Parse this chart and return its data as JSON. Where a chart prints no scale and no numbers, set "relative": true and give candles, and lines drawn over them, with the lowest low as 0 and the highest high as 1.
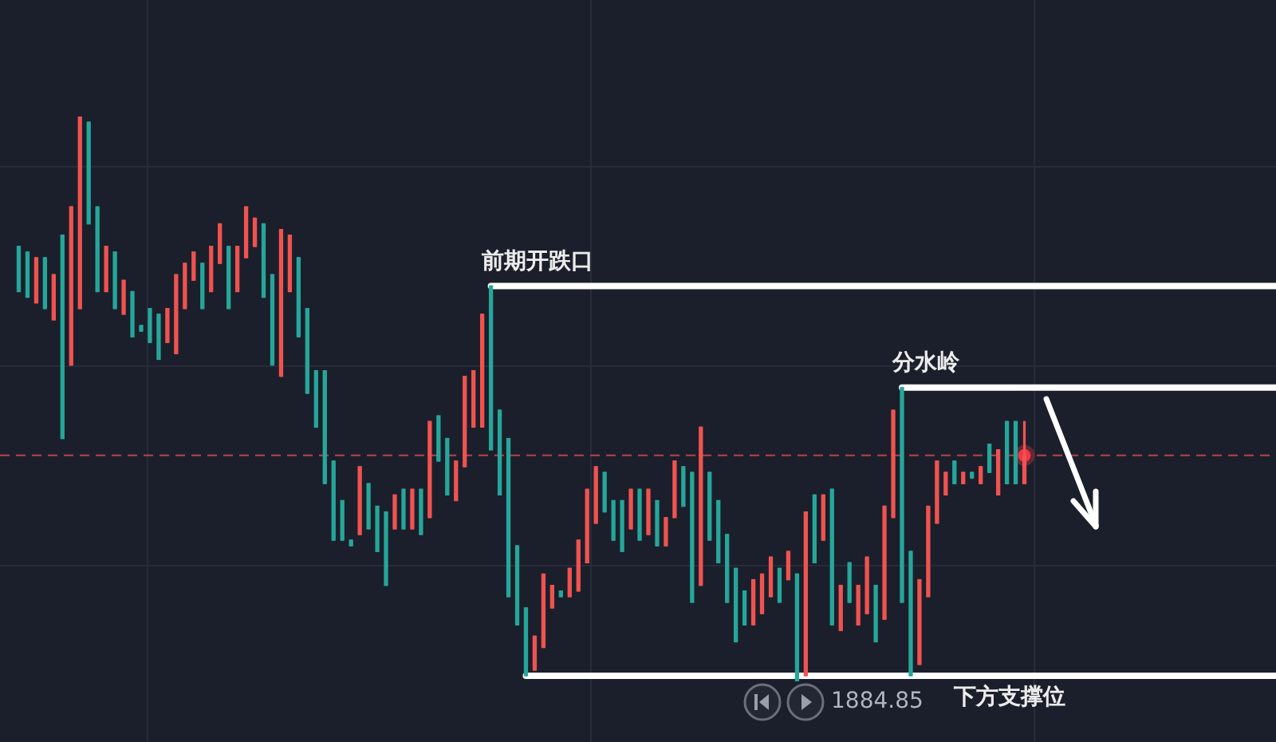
{
  "chart_data": {
    "type": "candlestick",
    "relative": true,
    "tick_labels": false,
    "grid": true,
    "categories": [
      null,
      null,
      null,
      null,
      null,
      null,
      null,
      null,
      null,
      null,
      null,
      null,
      null,
      null,
      null,
      null,
      null,
      null,
      null,
      null,
      null,
      null,
      null,
      null,
      null,
      null,
      null,
      null,
      null,
      null,
      null,
      null,
      null,
      null,
      null,
      null,
      null,
      null,
      null,
      null,
      null,
      null,
      null,
      null,
      null,
      null,
      null,
      null,
      null,
      null,
      null,
      null,
      null,
      null,
      null,
      null,
      null,
      null,
      null,
      null,
      null,
      null,
      null,
      null,
      null,
      null,
      null,
      null,
      null,
      null,
      null,
      null,
      null,
      null,
      null,
      null,
      null,
      null,
      null,
      null,
      null,
      null,
      null,
      null,
      null,
      null,
      null,
      null,
      null,
      null,
      null,
      null,
      null,
      null,
      null,
      null,
      null,
      null,
      null,
      null,
      null,
      null,
      null,
      null,
      null,
      null,
      null,
      null,
      null,
      null,
      null,
      null,
      null,
      null,
      null,
      null
    ],
    "ohlc": [
      [
        0.77,
        0.77,
        0.69,
        0.69
      ],
      [
        0.76,
        0.76,
        0.68,
        0.68
      ],
      [
        0.67,
        0.75,
        0.67,
        0.75
      ],
      [
        0.75,
        0.75,
        0.66,
        0.66
      ],
      [
        0.64,
        0.72,
        0.64,
        0.72
      ],
      [
        0.79,
        0.79,
        0.43,
        0.43
      ],
      [
        0.56,
        0.84,
        0.56,
        0.84
      ],
      [
        0.66,
        1,
        0.66,
        1
      ],
      [
        0.99,
        0.99,
        0.81,
        0.81
      ],
      [
        0.84,
        0.84,
        0.69,
        0.69
      ],
      [
        0.69,
        0.77,
        0.69,
        0.77
      ],
      [
        0.76,
        0.76,
        0.66,
        0.66
      ],
      [
        0.65,
        0.71,
        0.65,
        0.71
      ],
      [
        0.69,
        0.69,
        0.61,
        0.61
      ],
      [
        0.63,
        0.63,
        0.62,
        0.62
      ],
      [
        0.66,
        0.66,
        0.6,
        0.6
      ],
      [
        0.65,
        0.65,
        0.57,
        0.57
      ],
      [
        0.6,
        0.66,
        0.6,
        0.66
      ],
      [
        0.58,
        0.72,
        0.58,
        0.72
      ],
      [
        0.66,
        0.74,
        0.66,
        0.74
      ],
      [
        0.71,
        0.76,
        0.71,
        0.76
      ],
      [
        0.74,
        0.74,
        0.66,
        0.66
      ],
      [
        0.69,
        0.77,
        0.69,
        0.77
      ],
      [
        0.74,
        0.81,
        0.74,
        0.81
      ],
      [
        0.77,
        0.77,
        0.66,
        0.66
      ],
      [
        0.69,
        0.77,
        0.69,
        0.77
      ],
      [
        0.75,
        0.84,
        0.75,
        0.84
      ],
      [
        0.77,
        0.82,
        0.77,
        0.82
      ],
      [
        0.81,
        0.81,
        0.68,
        0.68
      ],
      [
        0.72,
        0.72,
        0.56,
        0.56
      ],
      [
        0.54,
        0.8,
        0.54,
        0.8
      ],
      [
        0.69,
        0.79,
        0.69,
        0.79
      ],
      [
        0.75,
        0.75,
        0.61,
        0.61
      ],
      [
        0.66,
        0.66,
        0.51,
        0.51
      ],
      [
        0.55,
        0.55,
        0.45,
        0.45
      ],
      [
        0.55,
        0.55,
        0.35,
        0.35
      ],
      [
        0.39,
        0.39,
        0.25,
        0.25
      ],
      [
        0.32,
        0.32,
        0.25,
        0.25
      ],
      [
        0.25,
        0.25,
        0.24,
        0.24
      ],
      [
        0.26,
        0.38,
        0.26,
        0.38
      ],
      [
        0.35,
        0.35,
        0.27,
        0.27
      ],
      [
        0.31,
        0.31,
        0.23,
        0.23
      ],
      [
        0.3,
        0.3,
        0.17,
        0.17
      ],
      [
        0.27,
        0.33,
        0.27,
        0.33
      ],
      [
        0.34,
        0.34,
        0.27,
        0.27
      ],
      [
        0.27,
        0.34,
        0.27,
        0.34
      ],
      [
        0.34,
        0.34,
        0.26,
        0.26
      ],
      [
        0.29,
        0.46,
        0.29,
        0.46
      ],
      [
        0.47,
        0.47,
        0.39,
        0.39
      ],
      [
        0.43,
        0.43,
        0.33,
        0.33
      ],
      [
        0.32,
        0.39,
        0.32,
        0.39
      ],
      [
        0.38,
        0.54,
        0.38,
        0.54
      ],
      [
        0.45,
        0.55,
        0.45,
        0.55
      ],
      [
        0.45,
        0.65,
        0.45,
        0.65
      ],
      [
        0.7,
        0.7,
        0.41,
        0.41
      ],
      [
        0.48,
        0.48,
        0.33,
        0.33
      ],
      [
        0.43,
        0.43,
        0.15,
        0.15
      ],
      [
        0.24,
        0.24,
        0.1,
        0.1
      ],
      [
        0.13,
        0.13,
        0.01,
        0.01
      ],
      [
        0.02,
        0.08,
        0.02,
        0.08
      ],
      [
        0.06,
        0.19,
        0.06,
        0.19
      ],
      [
        0.13,
        0.17,
        0.13,
        0.17
      ],
      [
        0.16,
        0.16,
        0.15,
        0.15
      ],
      [
        0.15,
        0.2,
        0.15,
        0.2
      ],
      [
        0.16,
        0.25,
        0.16,
        0.25
      ],
      [
        0.21,
        0.34,
        0.21,
        0.34
      ],
      [
        0.28,
        0.38,
        0.28,
        0.38
      ],
      [
        0.37,
        0.37,
        0.3,
        0.3
      ],
      [
        0.32,
        0.32,
        0.25,
        0.25
      ],
      [
        0.32,
        0.32,
        0.23,
        0.23
      ],
      [
        0.27,
        0.34,
        0.27,
        0.34
      ],
      [
        0.34,
        0.34,
        0.25,
        0.25
      ],
      [
        0.26,
        0.34,
        0.26,
        0.34
      ],
      [
        0.32,
        0.32,
        0.24,
        0.24
      ],
      [
        0.24,
        0.29,
        0.24,
        0.29
      ],
      [
        0.29,
        0.39,
        0.29,
        0.39
      ],
      [
        0.38,
        0.38,
        0.31,
        0.31
      ],
      [
        0.37,
        0.37,
        0.14,
        0.14
      ],
      [
        0.17,
        0.45,
        0.17,
        0.45
      ],
      [
        0.37,
        0.37,
        0.25,
        0.25
      ],
      [
        0.32,
        0.32,
        0.21,
        0.21
      ],
      [
        0.26,
        0.26,
        0.14,
        0.14
      ],
      [
        0.2,
        0.2,
        0.07,
        0.07
      ],
      [
        0.16,
        0.16,
        0.1,
        0.1
      ],
      [
        0.1,
        0.18,
        0.1,
        0.18
      ],
      [
        0.12,
        0.19,
        0.12,
        0.19
      ],
      [
        0.15,
        0.22,
        0.15,
        0.22
      ],
      [
        0.2,
        0.2,
        0.14,
        0.14
      ],
      [
        0.18,
        0.23,
        0.18,
        0.23
      ],
      [
        0.19,
        0.19,
        0,
        0
      ],
      [
        0.01,
        0.3,
        0.01,
        0.3
      ],
      [
        0.33,
        0.33,
        0.21,
        0.21
      ],
      [
        0.25,
        0.33,
        0.25,
        0.33
      ],
      [
        0.34,
        0.34,
        0.1,
        0.1
      ],
      [
        0.09,
        0.17,
        0.09,
        0.17
      ],
      [
        0.21,
        0.21,
        0.14,
        0.14
      ],
      [
        0.1,
        0.17,
        0.1,
        0.17
      ],
      [
        0.12,
        0.22,
        0.12,
        0.22
      ],
      [
        0.17,
        0.17,
        0.07,
        0.07
      ],
      [
        0.11,
        0.31,
        0.11,
        0.31
      ],
      [
        0.29,
        0.48,
        0.29,
        0.48
      ],
      [
        0.52,
        0.52,
        0.14,
        0.14
      ],
      [
        0.23,
        0.23,
        0.01,
        0.01
      ],
      [
        0.03,
        0.18,
        0.03,
        0.18
      ],
      [
        0.15,
        0.31,
        0.15,
        0.31
      ],
      [
        0.28,
        0.39,
        0.28,
        0.39
      ],
      [
        0.33,
        0.37,
        0.33,
        0.37
      ],
      [
        0.39,
        0.39,
        0.35,
        0.35
      ],
      [
        0.35,
        0.37,
        0.35,
        0.37
      ],
      [
        0.37,
        0.37,
        0.36,
        0.36
      ],
      [
        0.35,
        0.38,
        0.35,
        0.38
      ],
      [
        0.42,
        0.42,
        0.37,
        0.37
      ],
      [
        0.33,
        0.41,
        0.33,
        0.41
      ],
      [
        0.46,
        0.46,
        0.35,
        0.35
      ],
      [
        0.46,
        0.46,
        0.35,
        0.35
      ],
      [
        0.35,
        0.46,
        0.35,
        0.4
      ]
    ],
    "colors": [
      "#26a69a",
      "#26a69a",
      "#ef5350",
      "#26a69a",
      "#ef5350",
      "#26a69a",
      "#ef5350",
      "#ef5350",
      "#26a69a",
      "#26a69a",
      "#ef5350",
      "#26a69a",
      "#ef5350",
      "#26a69a",
      "#26a69a",
      "#26a69a",
      "#26a69a",
      "#ef5350",
      "#ef5350",
      "#ef5350",
      "#ef5350",
      "#26a69a",
      "#ef5350",
      "#ef5350",
      "#26a69a",
      "#ef5350",
      "#ef5350",
      "#ef5350",
      "#26a69a",
      "#26a69a",
      "#ef5350",
      "#ef5350",
      "#26a69a",
      "#26a69a",
      "#26a69a",
      "#26a69a",
      "#26a69a",
      "#26a69a",
      "#26a69a",
      "#ef5350",
      "#26a69a",
      "#26a69a",
      "#26a69a",
      "#ef5350",
      "#26a69a",
      "#ef5350",
      "#26a69a",
      "#ef5350",
      "#26a69a",
      "#26a69a",
      "#ef5350",
      "#ef5350",
      "#ef5350",
      "#ef5350",
      "#26a69a",
      "#26a69a",
      "#26a69a",
      "#26a69a",
      "#26a69a",
      "#ef5350",
      "#ef5350",
      "#ef5350",
      "#26a69a",
      "#ef5350",
      "#ef5350",
      "#ef5350",
      "#ef5350",
      "#26a69a",
      "#26a69a",
      "#26a69a",
      "#ef5350",
      "#26a69a",
      "#ef5350",
      "#26a69a",
      "#ef5350",
      "#ef5350",
      "#26a69a",
      "#26a69a",
      "#ef5350",
      "#26a69a",
      "#26a69a",
      "#26a69a",
      "#26a69a",
      "#26a69a",
      "#ef5350",
      "#ef5350",
      "#ef5350",
      "#26a69a",
      "#ef5350",
      "#26a69a",
      "#ef5350",
      "#26a69a",
      "#ef5350",
      "#26a69a",
      "#ef5350",
      "#26a69a",
      "#ef5350",
      "#ef5350",
      "#26a69a",
      "#ef5350",
      "#ef5350",
      "#26a69a",
      "#26a69a",
      "#ef5350",
      "#ef5350",
      "#ef5350",
      "#ef5350",
      "#26a69a",
      "#ef5350",
      "#26a69a",
      "#ef5350",
      "#26a69a",
      "#ef5350",
      "#26a69a",
      "#26a69a",
      "#ef5350"
    ],
    "series": [
      {
        "type": "scatter",
        "color": "#f23645",
        "marker": "circle",
        "values": [
          null,
          null,
          null,
          null,
          null,
          null,
          null,
          null,
          null,
          null,
          null,
          null,
          null,
          null,
          null,
          null,
          null,
          null,
          null,
          null,
          null,
          null,
          null,
          null,
          null,
          null,
          null,
          null,
          null,
          null,
          null,
          null,
          null,
          null,
          null,
          null,
          null,
          null,
          null,
          null,
          null,
          null,
          null,
          null,
          null,
          null,
          null,
          null,
          null,
          null,
          null,
          null,
          null,
          null,
          null,
          null,
          null,
          null,
          null,
          null,
          null,
          null,
          null,
          null,
          null,
          null,
          null,
          null,
          null,
          null,
          null,
          null,
          null,
          null,
          null,
          null,
          null,
          null,
          null,
          null,
          null,
          null,
          null,
          null,
          null,
          null,
          null,
          null,
          null,
          null,
          null,
          null,
          null,
          null,
          null,
          null,
          null,
          null,
          null,
          null,
          null,
          null,
          null,
          null,
          null,
          null,
          null,
          null,
          null,
          null,
          null,
          null,
          null,
          null,
          null,
          0.4
        ]
      }
    ],
    "ref_lines": [
      {
        "axis": "y",
        "value": 0.7,
        "label": "前期开跌口",
        "color": "#ffffff"
      },
      {
        "axis": "y",
        "value": 0.52,
        "label": "分水岭",
        "color": "#ffffff"
      },
      {
        "axis": "y",
        "value": 0.01,
        "label": "下方支撑位",
        "color": "#ffffff"
      },
      {
        "axis": "y",
        "value": 0.4,
        "color": "#b8434c",
        "line_style": "dashed"
      }
    ],
    "annotations": [
      "1884.85"
    ]
  }
}
